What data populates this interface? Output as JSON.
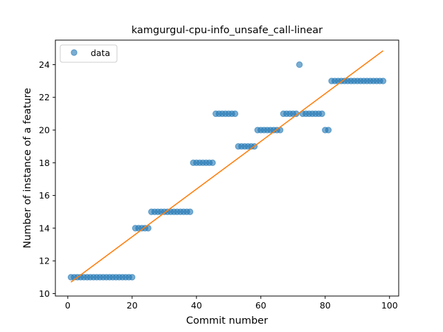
{
  "chart_data": {
    "type": "scatter",
    "title": "kamgurgul-cpu-info_unsafe_call-linear",
    "xlabel": "Commit number",
    "ylabel": "Number of instance of a feature",
    "xlim": [
      -3.85,
      102.85
    ],
    "ylim": [
      9.85,
      25.5
    ],
    "xticks": [
      0,
      20,
      40,
      60,
      80,
      100
    ],
    "yticks": [
      10,
      12,
      14,
      16,
      18,
      20,
      22,
      24
    ],
    "grid": false,
    "legend": {
      "position": "top-left",
      "entries": [
        "data"
      ]
    },
    "series": [
      {
        "name": "data",
        "kind": "markers",
        "color": "#1f77b4",
        "x": [
          1,
          2,
          3,
          4,
          5,
          6,
          7,
          8,
          9,
          10,
          11,
          12,
          13,
          14,
          15,
          16,
          17,
          18,
          19,
          20,
          21,
          22,
          23,
          24,
          25,
          26,
          27,
          28,
          29,
          30,
          31,
          32,
          33,
          34,
          35,
          36,
          37,
          38,
          39,
          40,
          41,
          42,
          43,
          44,
          45,
          46,
          47,
          48,
          49,
          50,
          51,
          52,
          53,
          54,
          55,
          56,
          57,
          58,
          59,
          60,
          61,
          62,
          63,
          64,
          65,
          66,
          67,
          68,
          69,
          70,
          71,
          72,
          73,
          74,
          75,
          76,
          77,
          78,
          79,
          80,
          81,
          82,
          83,
          84,
          85,
          86,
          87,
          88,
          89,
          90,
          91,
          92,
          93,
          94,
          95,
          96,
          97,
          98
        ],
        "y": [
          11,
          11,
          11,
          11,
          11,
          11,
          11,
          11,
          11,
          11,
          11,
          11,
          11,
          11,
          11,
          11,
          11,
          11,
          11,
          11,
          14,
          14,
          14,
          14,
          14,
          15,
          15,
          15,
          15,
          15,
          15,
          15,
          15,
          15,
          15,
          15,
          15,
          15,
          18,
          18,
          18,
          18,
          18,
          18,
          18,
          21,
          21,
          21,
          21,
          21,
          21,
          21,
          19,
          19,
          19,
          19,
          19,
          19,
          20,
          20,
          20,
          20,
          20,
          20,
          20,
          20,
          21,
          21,
          21,
          21,
          21,
          24,
          21,
          21,
          21,
          21,
          21,
          21,
          21,
          20,
          20,
          23,
          23,
          23,
          23,
          23,
          23,
          23,
          23,
          23,
          23,
          23,
          23,
          23,
          23,
          23,
          23,
          23
        ]
      },
      {
        "name": "",
        "kind": "line",
        "color": "#ff7f0e",
        "x": [
          1,
          98
        ],
        "y": [
          10.7,
          24.85
        ]
      }
    ]
  }
}
